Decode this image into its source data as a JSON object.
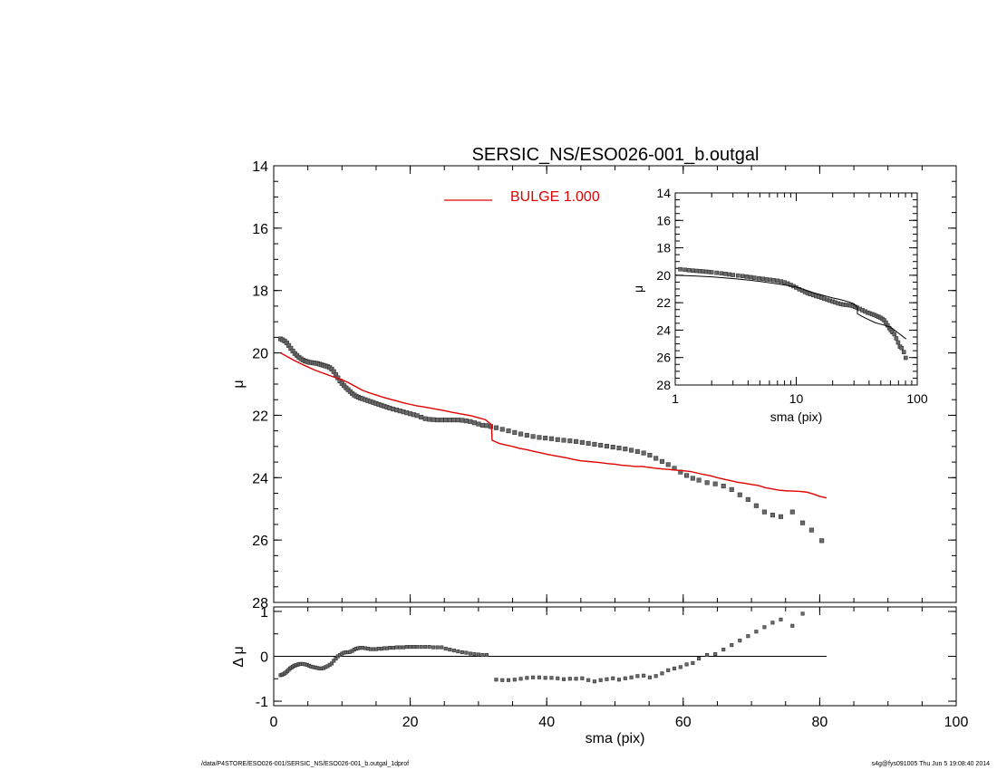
{
  "title": "SERSIC_NS/ESO026-001_b.outgal",
  "legend": {
    "label": "BULGE  1.000",
    "color": "#e00000"
  },
  "footer": {
    "path": "/data/P4STORE/ESO026-001/SERSIC_NS/ESO026-001_b.outgal_1dprof",
    "stamp": "s4g@fys091005  Thu Jun  5 19:08:40 2014"
  },
  "colors": {
    "data": "#6a6a6a",
    "model": "#e00000",
    "axis": "#000000"
  },
  "chart_data": [
    {
      "id": "main",
      "type": "scatter",
      "xlim": [
        0,
        100
      ],
      "ylim": [
        28,
        14
      ],
      "xlabel": "",
      "ylabel": "μ",
      "yticks": [
        14,
        16,
        18,
        20,
        22,
        24,
        26,
        28
      ],
      "series": [
        {
          "name": "",
          "kind": "points",
          "x": [
            1.0,
            1.3,
            1.6,
            1.9,
            2.2,
            2.5,
            2.8,
            3.1,
            3.4,
            3.7,
            4.0,
            4.3,
            4.6,
            4.9,
            5.2,
            5.5,
            5.8,
            6.1,
            6.4,
            6.7,
            7.0,
            7.3,
            7.6,
            7.9,
            8.2,
            8.5,
            8.8,
            9.1,
            9.4,
            9.7,
            10.0,
            10.3,
            10.6,
            10.9,
            11.2,
            11.5,
            11.8,
            12.1,
            12.4,
            12.7,
            13.0,
            13.4,
            13.8,
            14.2,
            14.6,
            15.0,
            15.4,
            15.8,
            16.2,
            16.6,
            17.0,
            17.5,
            18.0,
            18.5,
            19.0,
            19.5,
            20.0,
            20.5,
            21.0,
            21.6,
            22.2,
            22.8,
            23.4,
            24.0,
            24.6,
            25.2,
            25.8,
            26.4,
            27.0,
            27.6,
            28.2,
            28.8,
            29.4,
            30.0,
            30.6,
            31.2,
            31.8,
            32.6,
            33.5,
            34.4,
            35.3,
            36.2,
            37.1,
            38.0,
            38.9,
            39.8,
            40.7,
            41.6,
            42.5,
            43.4,
            44.3,
            45.2,
            46.1,
            47.0,
            47.9,
            48.8,
            49.7,
            50.6,
            51.5,
            52.4,
            53.3,
            54.2,
            55.1,
            56.0,
            56.9,
            57.8,
            58.7,
            59.6,
            60.5,
            61.4,
            62.3,
            63.5,
            64.7,
            65.9,
            67.1,
            68.3,
            69.5,
            70.7,
            71.9,
            73.1,
            74.3,
            76.0,
            77.5,
            78.8,
            80.3
          ],
          "y": [
            19.55,
            19.58,
            19.62,
            19.68,
            19.76,
            19.85,
            19.94,
            20.02,
            20.08,
            20.14,
            20.19,
            20.23,
            20.26,
            20.28,
            20.3,
            20.31,
            20.32,
            20.33,
            20.34,
            20.36,
            20.38,
            20.4,
            20.42,
            20.44,
            20.47,
            20.52,
            20.6,
            20.7,
            20.8,
            20.9,
            20.98,
            21.05,
            21.12,
            21.18,
            21.24,
            21.3,
            21.35,
            21.39,
            21.42,
            21.45,
            21.47,
            21.5,
            21.53,
            21.56,
            21.59,
            21.62,
            21.65,
            21.68,
            21.71,
            21.74,
            21.77,
            21.8,
            21.83,
            21.86,
            21.89,
            21.92,
            21.95,
            21.98,
            22.01,
            22.06,
            22.11,
            22.13,
            22.14,
            22.15,
            22.15,
            22.15,
            22.15,
            22.15,
            22.15,
            22.16,
            22.18,
            22.2,
            22.24,
            22.28,
            22.32,
            22.33,
            22.36,
            22.4,
            22.45,
            22.5,
            22.55,
            22.6,
            22.64,
            22.68,
            22.71,
            22.73,
            22.75,
            22.78,
            22.8,
            22.82,
            22.84,
            22.87,
            22.9,
            22.93,
            22.96,
            22.99,
            23.02,
            23.05,
            23.08,
            23.12,
            23.16,
            23.21,
            23.28,
            23.38,
            23.48,
            23.58,
            23.7,
            23.82,
            23.93,
            24.02,
            24.08,
            24.16,
            24.2,
            24.27,
            24.38,
            24.55,
            24.7,
            24.9,
            25.1,
            25.2,
            25.25,
            25.1,
            25.45,
            25.68,
            26.02
          ]
        },
        {
          "name": "BULGE  1.000",
          "kind": "line",
          "x": [
            1.0,
            2,
            3,
            4,
            5,
            6,
            7,
            8,
            9,
            10,
            11,
            12,
            13,
            14,
            15,
            16,
            17,
            18,
            19,
            20,
            21,
            22,
            23,
            24,
            25,
            26,
            27,
            28,
            29,
            30,
            31,
            31.9,
            32.0,
            33,
            34,
            35,
            36,
            37,
            38,
            39,
            40,
            41,
            42,
            43,
            44,
            45,
            46,
            47,
            48,
            49,
            50,
            51,
            52,
            53,
            54,
            55,
            56,
            57,
            58,
            59,
            60,
            61,
            62,
            63,
            64,
            65,
            66,
            67,
            68,
            69,
            70,
            71,
            72,
            73,
            74,
            75,
            76,
            77,
            78,
            79,
            80,
            81
          ],
          "y": [
            20.0,
            20.12,
            20.24,
            20.35,
            20.45,
            20.55,
            20.63,
            20.71,
            20.79,
            20.86,
            20.96,
            21.08,
            21.2,
            21.28,
            21.35,
            21.42,
            21.48,
            21.54,
            21.6,
            21.65,
            21.7,
            21.73,
            21.77,
            21.81,
            21.85,
            21.9,
            21.94,
            21.98,
            22.02,
            22.08,
            22.14,
            22.3,
            22.8,
            22.9,
            22.95,
            23.0,
            23.06,
            23.1,
            23.15,
            23.2,
            23.25,
            23.29,
            23.33,
            23.37,
            23.42,
            23.46,
            23.48,
            23.5,
            23.52,
            23.55,
            23.57,
            23.6,
            23.62,
            23.64,
            23.64,
            23.67,
            23.7,
            23.72,
            23.74,
            23.76,
            23.78,
            23.8,
            23.85,
            23.9,
            23.94,
            24.0,
            24.05,
            24.1,
            24.15,
            24.18,
            24.22,
            24.25,
            24.32,
            24.36,
            24.4,
            24.42,
            24.43,
            24.44,
            24.46,
            24.52,
            24.6,
            24.65
          ]
        }
      ]
    },
    {
      "id": "inset",
      "type": "scatter",
      "xscale": "log",
      "xlim": [
        1,
        100
      ],
      "ylim": [
        28,
        14
      ],
      "xlabel": "sma (pix)",
      "ylabel": "μ",
      "xticks": [
        "1",
        "10",
        "100"
      ],
      "yticks": [
        14,
        16,
        18,
        20,
        22,
        24,
        26,
        28
      ],
      "series": [
        {
          "name": "",
          "kind": "points",
          "x": [
            1.1,
            1.2,
            1.3,
            1.4,
            1.5,
            1.6,
            1.7,
            1.8,
            1.9,
            2.0,
            2.2,
            2.4,
            2.6,
            2.8,
            3.0,
            3.3,
            3.6,
            3.9,
            4.2,
            4.5,
            4.9,
            5.3,
            5.7,
            6.1,
            6.5,
            7.0,
            7.5,
            8.0,
            8.5,
            9.0,
            9.5,
            10.0,
            10.6,
            11.2,
            11.8,
            12.4,
            13.0,
            13.8,
            14.6,
            15.4,
            16.2,
            17.0,
            18.0,
            19.0,
            20.0,
            21.0,
            22.2,
            23.4,
            24.6,
            25.8,
            27.0,
            28.2,
            29.4,
            30.6,
            31.8,
            33.5,
            35.3,
            37.1,
            38.9,
            40.7,
            42.5,
            44.3,
            46.1,
            47.9,
            49.7,
            51.5,
            53.3,
            55.1,
            56.9,
            58.7,
            60.5,
            62.3,
            64.7,
            67.1,
            69.5,
            71.9,
            74.3,
            77.5,
            80.3
          ],
          "y": [
            19.56,
            19.6,
            19.63,
            19.66,
            19.68,
            19.7,
            19.72,
            19.74,
            19.76,
            19.78,
            19.82,
            19.86,
            19.9,
            19.94,
            19.98,
            20.02,
            20.06,
            20.1,
            20.14,
            20.18,
            20.22,
            20.26,
            20.3,
            20.33,
            20.36,
            20.4,
            20.45,
            20.52,
            20.6,
            20.7,
            20.8,
            20.9,
            21.02,
            21.12,
            21.22,
            21.3,
            21.38,
            21.45,
            21.52,
            21.58,
            21.64,
            21.7,
            21.78,
            21.85,
            21.92,
            21.98,
            22.05,
            22.1,
            22.14,
            22.16,
            22.18,
            22.2,
            22.25,
            22.3,
            22.36,
            22.45,
            22.55,
            22.64,
            22.72,
            22.78,
            22.84,
            22.9,
            22.97,
            23.03,
            23.1,
            23.18,
            23.28,
            23.45,
            23.65,
            23.85,
            24.0,
            24.15,
            24.3,
            24.6,
            24.9,
            25.2,
            25.3,
            25.6,
            26.02
          ]
        },
        {
          "name": "",
          "kind": "line",
          "x": [
            1.0,
            1.5,
            2,
            3,
            4,
            5,
            6,
            7,
            8,
            9,
            10,
            12,
            14,
            16,
            18,
            20,
            22,
            24,
            26,
            28,
            30,
            31.9,
            32.0,
            35,
            40,
            45,
            50,
            55,
            60,
            65,
            70,
            75,
            81
          ],
          "y": [
            20.0,
            20.06,
            20.12,
            20.24,
            20.35,
            20.45,
            20.55,
            20.63,
            20.71,
            20.79,
            20.86,
            21.08,
            21.28,
            21.42,
            21.54,
            21.65,
            21.73,
            21.81,
            21.9,
            21.98,
            22.08,
            22.3,
            22.8,
            23.0,
            23.25,
            23.46,
            23.57,
            23.67,
            23.78,
            24.0,
            24.22,
            24.42,
            24.65
          ]
        }
      ]
    },
    {
      "id": "residual",
      "type": "scatter",
      "xlim": [
        0,
        100
      ],
      "ylim": [
        -1.1,
        1.1
      ],
      "xlabel": "sma (pix)",
      "ylabel": "Δ μ",
      "xticks": [
        0,
        20,
        40,
        60,
        80,
        100
      ],
      "yticks": [
        -1,
        0,
        1
      ],
      "zero_line_to": 81,
      "series": [
        {
          "name": "",
          "kind": "points",
          "x": [
            1.0,
            1.2,
            1.4,
            1.6,
            1.8,
            2.0,
            2.2,
            2.4,
            2.6,
            2.8,
            3.0,
            3.2,
            3.4,
            3.6,
            3.8,
            4.0,
            4.3,
            4.6,
            4.9,
            5.2,
            5.5,
            5.8,
            6.1,
            6.4,
            6.7,
            7.0,
            7.3,
            7.6,
            7.9,
            8.2,
            8.5,
            8.8,
            9.1,
            9.4,
            9.7,
            10.0,
            10.3,
            10.6,
            10.9,
            11.2,
            11.5,
            11.8,
            12.1,
            12.4,
            12.7,
            13.0,
            13.4,
            13.8,
            14.2,
            14.6,
            15.0,
            15.4,
            15.8,
            16.2,
            16.6,
            17.0,
            17.5,
            18.0,
            18.5,
            19.0,
            19.5,
            20.0,
            20.5,
            21.0,
            21.6,
            22.2,
            22.8,
            23.4,
            24.0,
            24.6,
            25.2,
            25.8,
            26.4,
            27.0,
            27.6,
            28.2,
            28.8,
            29.4,
            30.0,
            30.6,
            31.2,
            32.6,
            33.5,
            34.4,
            35.3,
            36.2,
            37.1,
            38.0,
            38.9,
            39.8,
            40.7,
            41.6,
            42.5,
            43.4,
            44.3,
            45.2,
            46.1,
            47.0,
            47.9,
            48.8,
            49.7,
            50.6,
            51.5,
            52.4,
            53.3,
            54.2,
            55.1,
            56.0,
            56.9,
            57.8,
            58.7,
            59.6,
            60.5,
            61.4,
            62.3,
            63.5,
            64.7,
            65.9,
            67.1,
            68.3,
            69.5,
            70.7,
            71.9,
            73.1,
            74.3,
            76.0,
            77.5
          ],
          "y": [
            -0.42,
            -0.41,
            -0.4,
            -0.38,
            -0.36,
            -0.33,
            -0.3,
            -0.27,
            -0.25,
            -0.23,
            -0.21,
            -0.2,
            -0.19,
            -0.18,
            -0.17,
            -0.17,
            -0.17,
            -0.18,
            -0.19,
            -0.21,
            -0.23,
            -0.24,
            -0.25,
            -0.26,
            -0.27,
            -0.27,
            -0.26,
            -0.24,
            -0.22,
            -0.19,
            -0.16,
            -0.1,
            -0.05,
            0.0,
            0.03,
            0.06,
            0.08,
            0.09,
            0.09,
            0.1,
            0.12,
            0.15,
            0.17,
            0.18,
            0.19,
            0.19,
            0.18,
            0.17,
            0.16,
            0.16,
            0.16,
            0.17,
            0.17,
            0.18,
            0.18,
            0.19,
            0.19,
            0.2,
            0.2,
            0.2,
            0.21,
            0.21,
            0.21,
            0.21,
            0.21,
            0.21,
            0.21,
            0.2,
            0.2,
            0.2,
            0.17,
            0.15,
            0.13,
            0.11,
            0.09,
            0.08,
            0.06,
            0.05,
            0.04,
            0.03,
            0.03,
            -0.52,
            -0.53,
            -0.53,
            -0.52,
            -0.5,
            -0.48,
            -0.47,
            -0.47,
            -0.48,
            -0.48,
            -0.49,
            -0.51,
            -0.5,
            -0.5,
            -0.49,
            -0.53,
            -0.56,
            -0.53,
            -0.51,
            -0.49,
            -0.52,
            -0.49,
            -0.47,
            -0.44,
            -0.43,
            -0.47,
            -0.44,
            -0.38,
            -0.31,
            -0.27,
            -0.24,
            -0.18,
            -0.15,
            -0.05,
            0.03,
            0.05,
            0.15,
            0.25,
            0.35,
            0.45,
            0.55,
            0.65,
            0.75,
            0.82,
            0.68,
            0.95
          ]
        }
      ]
    }
  ]
}
